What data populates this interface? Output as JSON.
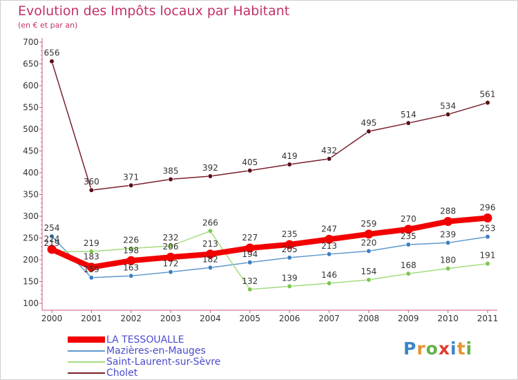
{
  "title": "Evolution des Impôts locaux par Habitant",
  "subtitle": "(en € et par an)",
  "brand": {
    "text": "Proxiti",
    "colors": [
      "#3b86c9",
      "#e8932f",
      "#62b247",
      "#e03c2f",
      "#3b86c9",
      "#e8932f",
      "#62b247"
    ]
  },
  "chart_data": {
    "type": "line",
    "categories": [
      "2000",
      "2001",
      "2002",
      "2003",
      "2004",
      "2005",
      "2006",
      "2007",
      "2008",
      "2009",
      "2010",
      "2011"
    ],
    "ylim": [
      100,
      700
    ],
    "yticks": [
      100,
      150,
      200,
      250,
      300,
      350,
      400,
      450,
      500,
      550,
      600,
      650,
      700
    ],
    "xlabel": "",
    "ylabel": "",
    "grid": false,
    "legend_position": "bottom-left",
    "series": [
      {
        "name": "Cholet",
        "color": "#7a1f2b",
        "point_color": "#5a1019",
        "weight": "thin",
        "values": [
          656,
          360,
          371,
          385,
          392,
          405,
          419,
          432,
          495,
          514,
          534,
          561
        ]
      },
      {
        "name": "Mazières-en-Mauges",
        "color": "#5e98cc",
        "point_color": "#3d7fc0",
        "weight": "thin",
        "values": [
          254,
          159,
          163,
          172,
          182,
          194,
          205,
          213,
          220,
          235,
          239,
          253
        ]
      },
      {
        "name": "Saint-Laurent-sur-Sèvre",
        "color": "#a3dc7e",
        "point_color": "#7dc64d",
        "weight": "thin",
        "values": [
          219,
          219,
          226,
          232,
          266,
          132,
          139,
          146,
          154,
          168,
          180,
          191
        ]
      },
      {
        "name": "LA TESSOUALLE",
        "color": "#f20000",
        "point_color": "#f20000",
        "weight": "thick",
        "values": [
          224,
          183,
          198,
          206,
          213,
          227,
          235,
          247,
          259,
          270,
          288,
          296
        ]
      }
    ],
    "legend_order": [
      "LA TESSOUALLE",
      "Mazières-en-Mauges",
      "Saint-Laurent-sur-Sèvre",
      "Cholet"
    ]
  }
}
